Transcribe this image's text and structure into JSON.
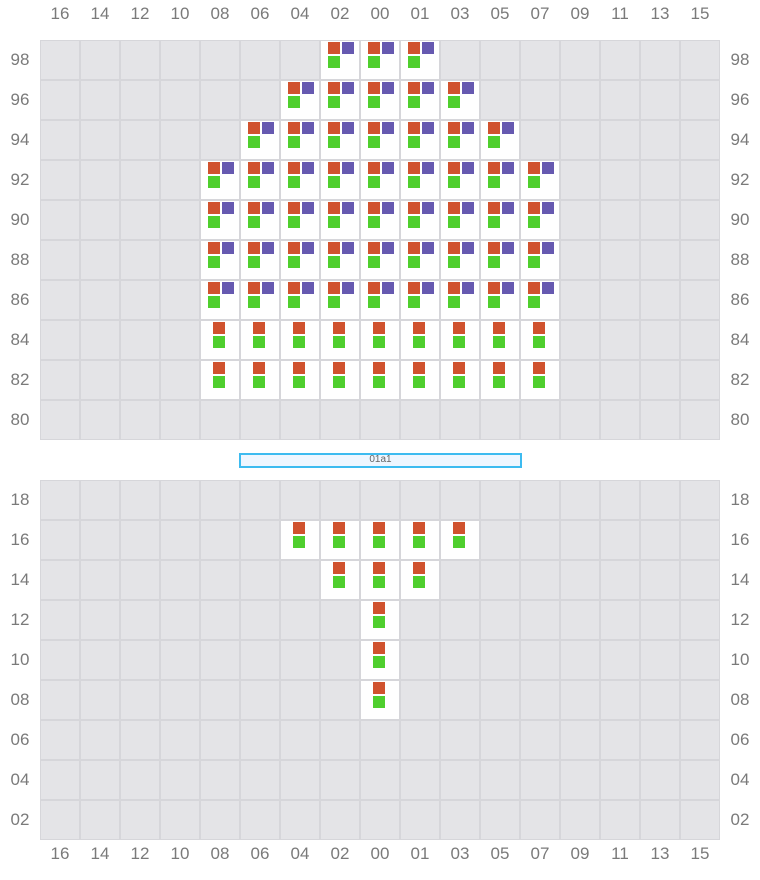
{
  "columns": [
    "16",
    "14",
    "12",
    "10",
    "08",
    "06",
    "04",
    "02",
    "00",
    "01",
    "03",
    "05",
    "07",
    "09",
    "11",
    "13",
    "15"
  ],
  "colors": {
    "orange": "#d0522e",
    "purple": "#6659b0",
    "green": "#4fcf2e",
    "empty_cell": "#e4e4e7",
    "occupied_cell": "#ffffff",
    "separator": "#3dbbf0"
  },
  "separator_label": "01a1",
  "sections": [
    {
      "name": "upper",
      "rows": [
        "98",
        "96",
        "94",
        "92",
        "90",
        "88",
        "86",
        "84",
        "82",
        "80"
      ],
      "occupied": [
        {
          "row": "98",
          "cols": [
            "02",
            "00",
            "01"
          ],
          "items": [
            "orange",
            "purple",
            "green"
          ]
        },
        {
          "row": "96",
          "cols": [
            "04",
            "02",
            "00",
            "01",
            "03"
          ],
          "items": [
            "orange",
            "purple",
            "green"
          ]
        },
        {
          "row": "94",
          "cols": [
            "06",
            "04",
            "02",
            "00",
            "01",
            "03",
            "05"
          ],
          "items": [
            "orange",
            "purple",
            "green"
          ]
        },
        {
          "row": "92",
          "cols": [
            "08",
            "06",
            "04",
            "02",
            "00",
            "01",
            "03",
            "05",
            "07"
          ],
          "items": [
            "orange",
            "purple",
            "green"
          ]
        },
        {
          "row": "90",
          "cols": [
            "08",
            "06",
            "04",
            "02",
            "00",
            "01",
            "03",
            "05",
            "07"
          ],
          "items": [
            "orange",
            "purple",
            "green"
          ]
        },
        {
          "row": "88",
          "cols": [
            "08",
            "06",
            "04",
            "02",
            "00",
            "01",
            "03",
            "05",
            "07"
          ],
          "items": [
            "orange",
            "purple",
            "green"
          ]
        },
        {
          "row": "86",
          "cols": [
            "08",
            "06",
            "04",
            "02",
            "00",
            "01",
            "03",
            "05",
            "07"
          ],
          "items": [
            "orange",
            "purple",
            "green"
          ]
        },
        {
          "row": "84",
          "cols": [
            "08",
            "06",
            "04",
            "02",
            "00",
            "01",
            "03",
            "05",
            "07"
          ],
          "items": [
            "orange",
            "green"
          ]
        },
        {
          "row": "82",
          "cols": [
            "08",
            "06",
            "04",
            "02",
            "00",
            "01",
            "03",
            "05",
            "07"
          ],
          "items": [
            "orange",
            "green"
          ]
        }
      ]
    },
    {
      "name": "lower",
      "rows": [
        "18",
        "16",
        "14",
        "12",
        "10",
        "08",
        "06",
        "04",
        "02"
      ],
      "occupied": [
        {
          "row": "16",
          "cols": [
            "04",
            "02",
            "00",
            "01",
            "03"
          ],
          "items": [
            "orange",
            "green"
          ]
        },
        {
          "row": "14",
          "cols": [
            "02",
            "00",
            "01"
          ],
          "items": [
            "orange",
            "green"
          ]
        },
        {
          "row": "12",
          "cols": [
            "00"
          ],
          "items": [
            "orange",
            "green"
          ]
        },
        {
          "row": "10",
          "cols": [
            "00"
          ],
          "items": [
            "orange",
            "green"
          ]
        },
        {
          "row": "08",
          "cols": [
            "00"
          ],
          "items": [
            "orange",
            "green"
          ]
        }
      ]
    }
  ]
}
